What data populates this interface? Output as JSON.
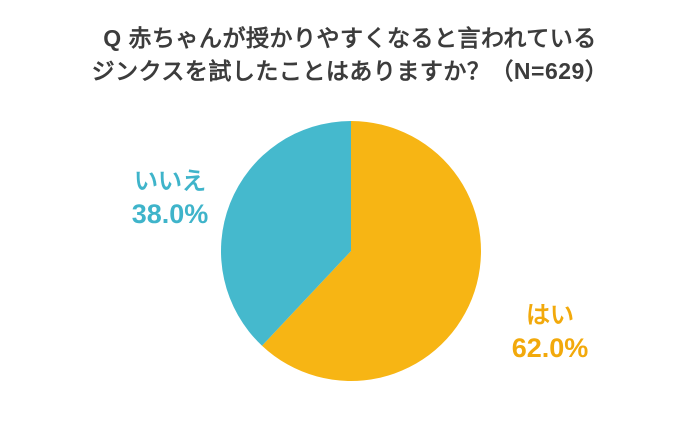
{
  "title": {
    "line1": "Q 赤ちゃんが授かりやすくなると言われている",
    "line2": "ジンクスを試したことはありますか？（N=629）"
  },
  "chart_data": {
    "type": "pie",
    "title": "Q 赤ちゃんが授かりやすくなると言われているジンクスを試したことはありますか？（N=629）",
    "sample_size": "N=629",
    "start_angle_deg": -90,
    "direction": "clockwise",
    "legend_position": "none",
    "slices": [
      {
        "label": "はい",
        "value": 62.0,
        "display": "62.0%",
        "color": "#f7b514"
      },
      {
        "label": "いいえ",
        "value": 38.0,
        "display": "38.0%",
        "color": "#45b9cd"
      }
    ]
  },
  "colors": {
    "background": "#ffffff",
    "title_text": "#3c3c3c",
    "yes_label": "#f2a90b",
    "no_label": "#3fb4ca"
  }
}
